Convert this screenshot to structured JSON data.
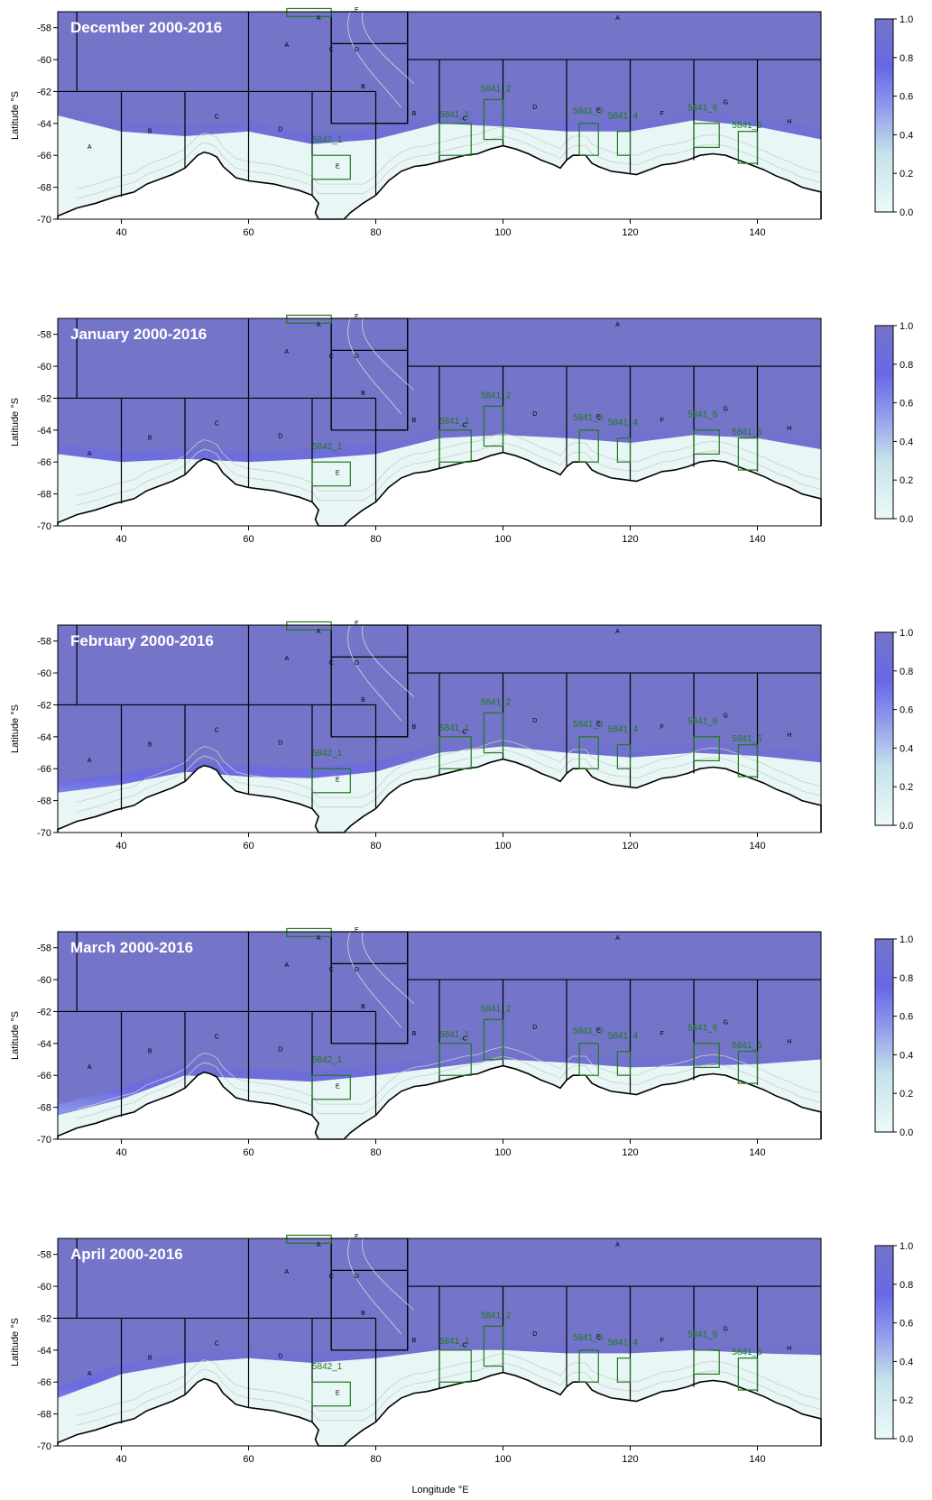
{
  "figure": {
    "x_axis_label": "Longitude  °E",
    "y_axis_label": "Latitude  °S",
    "x_ticks": [
      "40",
      "60",
      "80",
      "100",
      "120",
      "140"
    ],
    "y_ticks": [
      "-58",
      "-60",
      "-62",
      "-64",
      "-66",
      "-68",
      "-70"
    ],
    "colorbar_ticks": [
      "1.0",
      "0.8",
      "0.6",
      "0.4",
      "0.2",
      "0.0"
    ],
    "colors": {
      "high": "#7474c8",
      "mid": "#6a6ae6",
      "low": "#e9f6f6",
      "ssmu": "#1d7a1d",
      "coast": "#000000"
    },
    "area_labels": [
      "A",
      "B",
      "C",
      "D",
      "E",
      "F",
      "G",
      "H"
    ],
    "ssmu_labels": [
      "5842_1",
      "5841_1",
      "5841_2",
      "5841_3",
      "5841_4",
      "5841_6",
      "5841_5"
    ],
    "panels": [
      {
        "title": "December 2000-2016"
      },
      {
        "title": "January 2000-2016"
      },
      {
        "title": "February 2000-2016"
      },
      {
        "title": "March 2000-2016"
      },
      {
        "title": "April 2000-2016"
      }
    ]
  },
  "chart_data": {
    "type": "heatmap",
    "xlim": [
      30,
      150
    ],
    "ylim": [
      -70,
      -57
    ],
    "value_range": [
      0,
      1
    ],
    "panels": [
      {
        "month": "December",
        "edge_lon": [
          30,
          40,
          50,
          60,
          70,
          80,
          90,
          100,
          110,
          120,
          130,
          140,
          150
        ],
        "edge_lat": [
          -63.5,
          -64.5,
          -64.8,
          -64.5,
          -65.3,
          -65.0,
          -64.0,
          -64.2,
          -64.5,
          -64.5,
          -63.8,
          -64.2,
          -65.0
        ]
      },
      {
        "month": "January",
        "edge_lon": [
          30,
          40,
          50,
          60,
          70,
          80,
          90,
          100,
          110,
          120,
          130,
          140,
          150
        ],
        "edge_lat": [
          -65.5,
          -66.0,
          -65.8,
          -66.0,
          -65.8,
          -65.5,
          -64.5,
          -64.3,
          -64.5,
          -64.8,
          -64.3,
          -64.5,
          -65.2
        ]
      },
      {
        "month": "February",
        "edge_lon": [
          30,
          40,
          50,
          60,
          70,
          80,
          90,
          100,
          110,
          120,
          130,
          140,
          150
        ],
        "edge_lat": [
          -67.5,
          -67.0,
          -66.2,
          -66.5,
          -66.6,
          -66.2,
          -65.0,
          -64.6,
          -65.0,
          -65.3,
          -65.0,
          -65.2,
          -65.6
        ]
      },
      {
        "month": "March",
        "edge_lon": [
          30,
          40,
          50,
          60,
          70,
          80,
          90,
          100,
          110,
          120,
          130,
          140,
          150
        ],
        "edge_lat": [
          -68.5,
          -67.5,
          -66.0,
          -66.2,
          -66.4,
          -66.0,
          -65.5,
          -65.0,
          -65.2,
          -65.5,
          -65.4,
          -65.3,
          -65.0
        ]
      },
      {
        "month": "April",
        "edge_lon": [
          30,
          40,
          50,
          60,
          70,
          80,
          90,
          100,
          110,
          120,
          130,
          140,
          150
        ],
        "edge_lat": [
          -67.0,
          -65.5,
          -64.8,
          -64.5,
          -64.8,
          -64.5,
          -64.0,
          -64.0,
          -64.2,
          -64.2,
          -64.0,
          -64.2,
          -64.3
        ]
      }
    ]
  }
}
